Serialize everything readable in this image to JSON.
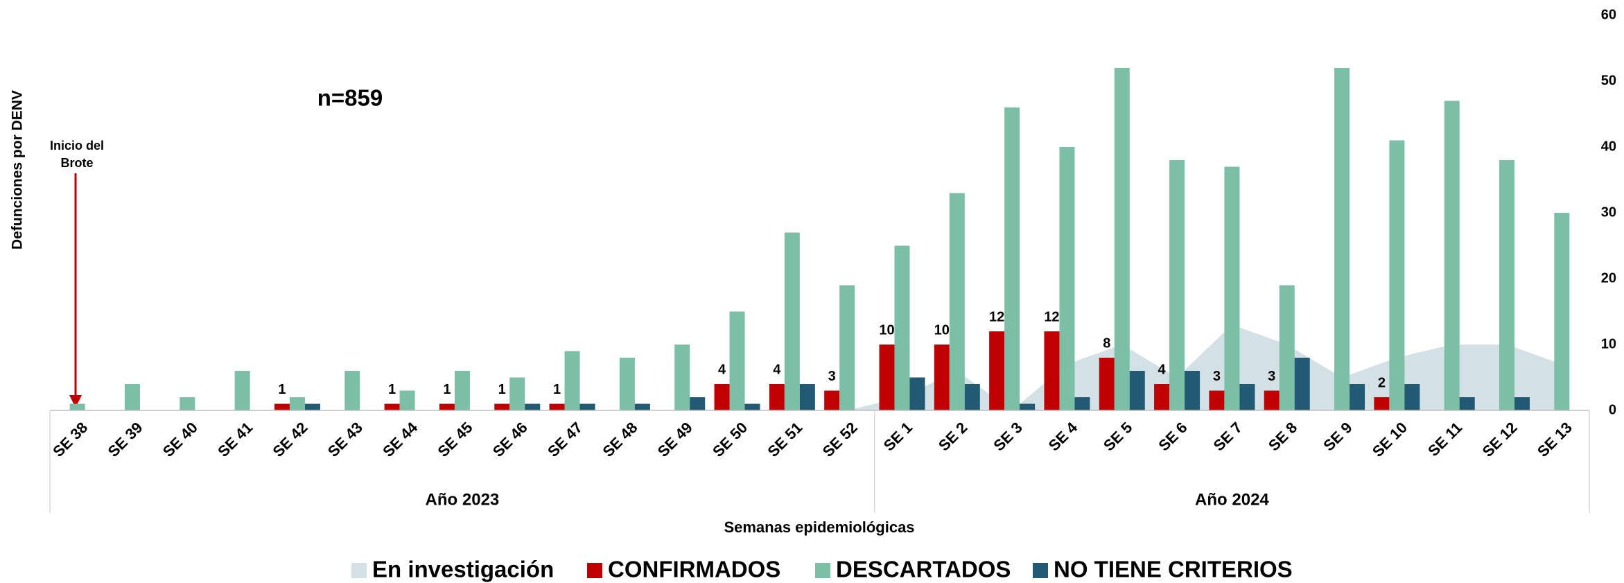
{
  "chart_data": {
    "type": "bar",
    "y_axis_label": "Defunciones por DENV",
    "x_axis_label": "Semanas epidemiológicas",
    "annotations": [
      "n=859",
      "Inicio del",
      "Brote"
    ],
    "groups": [
      {
        "label": "Año 2023",
        "count": 15
      },
      {
        "label": "Año 2024",
        "count": 13
      }
    ],
    "categories": [
      "SE 38",
      "SE 39",
      "SE 40",
      "SE 41",
      "SE 42",
      "SE 43",
      "SE 44",
      "SE 45",
      "SE 46",
      "SE 47",
      "SE 48",
      "SE 49",
      "SE 50",
      "SE 51",
      "SE 52",
      "SE 1",
      "SE 2",
      "SE 3",
      "SE 4",
      "SE 5",
      "SE 6",
      "SE 7",
      "SE 8",
      "SE 9",
      "SE 10",
      "SE 11",
      "SE 12",
      "SE 13"
    ],
    "series": [
      {
        "name": "En investigación",
        "type": "area",
        "color": "#d3e0e6",
        "values": [
          0,
          0,
          0,
          0,
          0,
          0,
          0,
          0,
          0,
          0,
          0,
          0,
          0,
          0,
          0,
          2,
          6,
          0,
          7,
          10,
          5,
          13,
          10,
          5,
          8,
          10,
          10,
          7
        ]
      },
      {
        "name": "CONFIRMADOS",
        "color": "#c00000",
        "show_labels": true,
        "values": [
          null,
          null,
          null,
          null,
          1,
          null,
          1,
          1,
          1,
          1,
          null,
          null,
          4,
          4,
          3,
          10,
          10,
          12,
          12,
          8,
          4,
          3,
          3,
          null,
          2,
          null,
          null,
          null
        ]
      },
      {
        "name": "DESCARTADOS",
        "color": "#7bbfa6",
        "values": [
          1,
          4,
          2,
          6,
          2,
          6,
          3,
          6,
          5,
          9,
          8,
          10,
          15,
          27,
          19,
          25,
          33,
          46,
          40,
          52,
          38,
          37,
          19,
          52,
          41,
          47,
          38,
          30
        ]
      },
      {
        "name": "NO TIENE CRITERIOS",
        "color": "#215a72",
        "values": [
          null,
          null,
          null,
          null,
          1,
          null,
          null,
          null,
          1,
          1,
          1,
          2,
          1,
          4,
          null,
          5,
          4,
          1,
          2,
          6,
          6,
          4,
          8,
          4,
          4,
          2,
          2,
          null
        ]
      }
    ],
    "ylim": [
      0,
      60
    ],
    "yticks": [
      0,
      10,
      20,
      30,
      40,
      50,
      60
    ]
  }
}
